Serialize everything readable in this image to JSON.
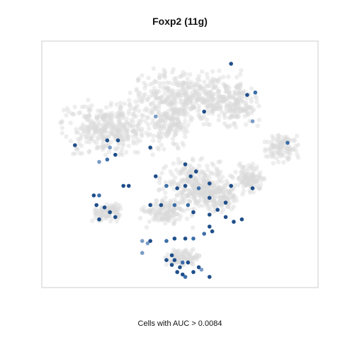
{
  "chart_data": {
    "type": "scatter",
    "title": "Foxp2 (11g)",
    "caption": "Cells with AUC > 0.0084",
    "xlabel": "",
    "ylabel": "",
    "xlim": [
      0,
      100
    ],
    "ylim": [
      0,
      100
    ],
    "grid": false,
    "axes_ticks": false,
    "colors": {
      "background_cell": "#d9d9d9",
      "highlight_dark": "#1f4e8a",
      "highlight_mid": "#3b6ea8",
      "highlight_light": "#7a9cc6",
      "frame": "#cccccc"
    },
    "background_clusters": [
      {
        "name": "",
        "cx": 52,
        "cy": 78,
        "rx": 20,
        "ry": 11,
        "n": 420
      },
      {
        "name": "",
        "cx": 70,
        "cy": 75,
        "rx": 9,
        "ry": 9,
        "n": 160
      },
      {
        "name": "",
        "cx": 24,
        "cy": 65,
        "rx": 17,
        "ry": 11,
        "n": 380
      },
      {
        "name": "",
        "cx": 47,
        "cy": 65,
        "rx": 7,
        "ry": 8,
        "n": 120
      },
      {
        "name": "",
        "cx": 88,
        "cy": 57,
        "rx": 6,
        "ry": 6,
        "n": 110
      },
      {
        "name": "",
        "cx": 55,
        "cy": 42,
        "rx": 12,
        "ry": 10,
        "n": 280
      },
      {
        "name": "",
        "cx": 75,
        "cy": 44,
        "rx": 6,
        "ry": 6,
        "n": 120
      },
      {
        "name": "",
        "cx": 64,
        "cy": 36,
        "rx": 8,
        "ry": 6,
        "n": 150
      },
      {
        "name": "",
        "cx": 45,
        "cy": 30,
        "rx": 9,
        "ry": 6,
        "n": 140
      },
      {
        "name": "",
        "cx": 23,
        "cy": 30,
        "rx": 6,
        "ry": 4,
        "n": 90
      },
      {
        "name": "",
        "cx": 51,
        "cy": 11,
        "rx": 6,
        "ry": 3.5,
        "n": 90
      }
    ],
    "highlighted_points": [
      {
        "x": 69,
        "y": 92,
        "level": 0.8
      },
      {
        "x": 75,
        "y": 79,
        "level": 0.85
      },
      {
        "x": 78,
        "y": 80,
        "level": 0.7
      },
      {
        "x": 59,
        "y": 72,
        "level": 0.85
      },
      {
        "x": 41,
        "y": 70,
        "level": 0.5
      },
      {
        "x": 77,
        "y": 68,
        "level": 0.5
      },
      {
        "x": 11,
        "y": 58,
        "level": 0.85
      },
      {
        "x": 23,
        "y": 60,
        "level": 0.9
      },
      {
        "x": 24,
        "y": 57,
        "level": 0.5
      },
      {
        "x": 27,
        "y": 60,
        "level": 0.85
      },
      {
        "x": 39,
        "y": 57,
        "level": 0.9
      },
      {
        "x": 23,
        "y": 52,
        "level": 0.55
      },
      {
        "x": 26,
        "y": 54,
        "level": 0.8
      },
      {
        "x": 20,
        "y": 51,
        "level": 0.4
      },
      {
        "x": 90,
        "y": 59,
        "level": 0.6
      },
      {
        "x": 52,
        "y": 50,
        "level": 0.9
      },
      {
        "x": 54,
        "y": 45,
        "level": 0.9
      },
      {
        "x": 41,
        "y": 45,
        "level": 0.9
      },
      {
        "x": 45,
        "y": 41,
        "level": 0.6
      },
      {
        "x": 49,
        "y": 40,
        "level": 0.9
      },
      {
        "x": 52,
        "y": 41,
        "level": 0.85
      },
      {
        "x": 57,
        "y": 40,
        "level": 0.6
      },
      {
        "x": 61,
        "y": 42,
        "level": 0.9
      },
      {
        "x": 69,
        "y": 41,
        "level": 0.8
      },
      {
        "x": 77,
        "y": 40,
        "level": 0.9
      },
      {
        "x": 61,
        "y": 36,
        "level": 0.85
      },
      {
        "x": 29,
        "y": 41,
        "level": 0.85
      },
      {
        "x": 31,
        "y": 41,
        "level": 0.85
      },
      {
        "x": 18,
        "y": 37,
        "level": 0.85
      },
      {
        "x": 20,
        "y": 37,
        "level": 0.7
      },
      {
        "x": 19,
        "y": 33,
        "level": 0.8
      },
      {
        "x": 22,
        "y": 32,
        "level": 0.85
      },
      {
        "x": 24,
        "y": 30,
        "level": 0.85
      },
      {
        "x": 26,
        "y": 28,
        "level": 0.85
      },
      {
        "x": 20,
        "y": 27,
        "level": 0.85
      },
      {
        "x": 39,
        "y": 33,
        "level": 0.85
      },
      {
        "x": 43,
        "y": 33,
        "level": 0.85
      },
      {
        "x": 48,
        "y": 33,
        "level": 0.6
      },
      {
        "x": 53,
        "y": 33,
        "level": 0.7
      },
      {
        "x": 55,
        "y": 30,
        "level": 0.85
      },
      {
        "x": 61,
        "y": 29,
        "level": 0.85
      },
      {
        "x": 64,
        "y": 31,
        "level": 0.9
      },
      {
        "x": 67,
        "y": 28,
        "level": 0.9
      },
      {
        "x": 70,
        "y": 26,
        "level": 0.8
      },
      {
        "x": 73,
        "y": 27,
        "level": 0.85
      },
      {
        "x": 62,
        "y": 22,
        "level": 0.9
      },
      {
        "x": 59,
        "y": 21,
        "level": 0.6
      },
      {
        "x": 55,
        "y": 19,
        "level": 0.55
      },
      {
        "x": 52,
        "y": 19,
        "level": 0.85
      },
      {
        "x": 48,
        "y": 19,
        "level": 0.85
      },
      {
        "x": 45,
        "y": 18,
        "level": 0.6
      },
      {
        "x": 38,
        "y": 17,
        "level": 0.4
      },
      {
        "x": 39,
        "y": 18,
        "level": 0.85
      },
      {
        "x": 36,
        "y": 18,
        "level": 0.5
      },
      {
        "x": 47,
        "y": 12,
        "level": 0.9
      },
      {
        "x": 48,
        "y": 10,
        "level": 0.85
      },
      {
        "x": 47,
        "y": 8,
        "level": 0.85
      },
      {
        "x": 50,
        "y": 7,
        "level": 0.85
      },
      {
        "x": 51,
        "y": 9,
        "level": 0.6
      },
      {
        "x": 53,
        "y": 9,
        "level": 0.8
      },
      {
        "x": 55,
        "y": 5,
        "level": 0.85
      },
      {
        "x": 57,
        "y": 7,
        "level": 0.85
      },
      {
        "x": 49,
        "y": 5,
        "level": 0.85
      },
      {
        "x": 51,
        "y": 4,
        "level": 0.85
      },
      {
        "x": 52,
        "y": 3,
        "level": 0.6
      },
      {
        "x": 45,
        "y": 10,
        "level": 0.8
      },
      {
        "x": 58,
        "y": 6,
        "level": 0.5
      },
      {
        "x": 61,
        "y": 3,
        "level": 0.8
      },
      {
        "x": 36,
        "y": 13,
        "level": 0.5
      },
      {
        "x": 61,
        "y": 24,
        "level": 0.85
      },
      {
        "x": 67,
        "y": 34,
        "level": 0.8
      },
      {
        "x": 56,
        "y": 47,
        "level": 0.85
      }
    ]
  }
}
